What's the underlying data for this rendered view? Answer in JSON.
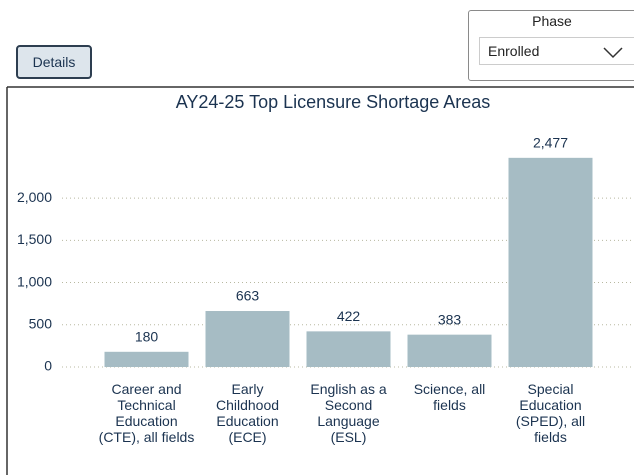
{
  "ui": {
    "details_button": "Details",
    "slicer": {
      "title": "Phase",
      "value": "Enrolled"
    }
  },
  "chart_data": {
    "type": "bar",
    "title": "AY24-25 Top Licensure Shortage Areas",
    "categories": [
      "Career and Technical Education (CTE), all fields",
      "Early Childhood Education (ECE)",
      "English as a Second Language (ESL)",
      "Science, all fields",
      "Special Education (SPED), all fields"
    ],
    "values": [
      180,
      663,
      422,
      383,
      2477
    ],
    "value_labels": [
      "180",
      "663",
      "422",
      "383",
      "2,477"
    ],
    "color": "#a6bcc4",
    "ylim": [
      0,
      2700
    ],
    "yticks": [
      0,
      500,
      {
        "value": 1000,
        "label": "1,000"
      },
      {
        "value": 1500,
        "label": "1,500"
      },
      {
        "value": 2000,
        "label": "2,000"
      }
    ],
    "grid": true
  }
}
